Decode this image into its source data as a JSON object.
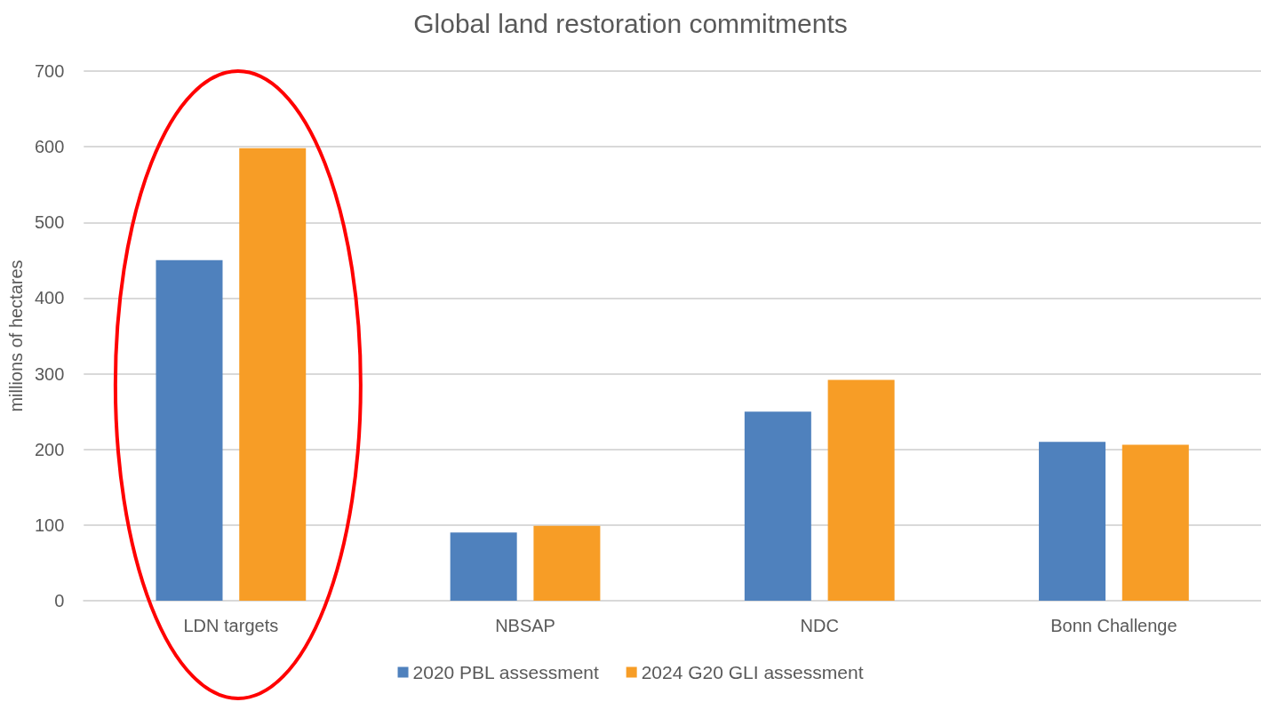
{
  "chart_data": {
    "type": "bar",
    "title": "Global land restoration commitments",
    "ylabel": "millions of hectares",
    "categories": [
      "LDN targets",
      "NBSAP",
      "NDC",
      "Bonn Challenge"
    ],
    "series": [
      {
        "name": "2020 PBL assessment",
        "color": "#4f81bd",
        "values": [
          450,
          90,
          250,
          210
        ]
      },
      {
        "name": "2024 G20 GLI assessment",
        "color": "#f79d26",
        "values": [
          598,
          99,
          292,
          206
        ]
      }
    ],
    "ylim": [
      0,
      700
    ],
    "yticks": [
      0,
      100,
      200,
      300,
      400,
      500,
      600,
      700
    ],
    "grid": "y",
    "legend": "bottom"
  }
}
